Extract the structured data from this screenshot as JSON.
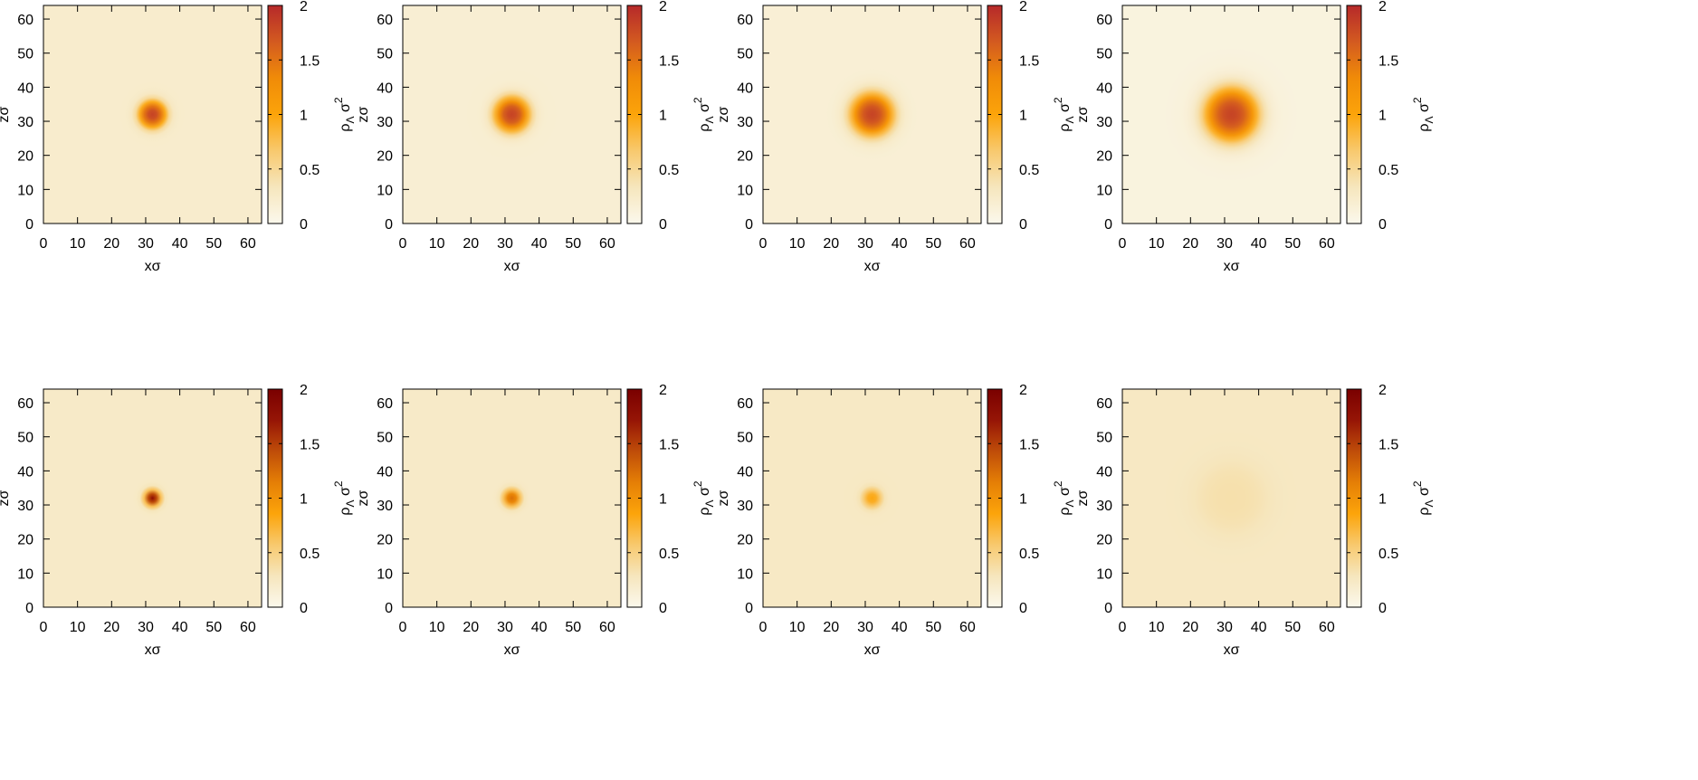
{
  "colors": {
    "top_colorbar": [
      "#fbf8ec",
      "#f6e6bd",
      "#f8c96e",
      "#fca40a",
      "#f08b08",
      "#d35a20",
      "#b6292a"
    ],
    "bottom_colorbar": [
      "#fbf8ec",
      "#f6e6bd",
      "#f8c96e",
      "#fca40a",
      "#e57f06",
      "#bf4d09",
      "#961506",
      "#7a0000"
    ]
  },
  "chart_data": [
    {
      "type": "heatmap",
      "row": "top",
      "xlabel": "xσ",
      "ylabel": "zσ",
      "xlim": [
        0,
        64
      ],
      "ylim": [
        0,
        64
      ],
      "xticks": [
        0,
        10,
        20,
        30,
        40,
        50,
        60
      ],
      "yticks": [
        0,
        10,
        20,
        30,
        40,
        50,
        60
      ],
      "colorbar": {
        "label": "ρΛ σ2",
        "range": [
          0,
          2
        ],
        "ticks": [
          0,
          0.5,
          1,
          1.5,
          2
        ]
      },
      "center": [
        32,
        32
      ],
      "core_radius": 3.5,
      "peak_density": 1.85,
      "background_density": 0.22
    },
    {
      "type": "heatmap",
      "row": "top",
      "xlabel": "xσ",
      "ylabel": "zσ",
      "xlim": [
        0,
        64
      ],
      "ylim": [
        0,
        64
      ],
      "xticks": [
        0,
        10,
        20,
        30,
        40,
        50,
        60
      ],
      "yticks": [
        0,
        10,
        20,
        30,
        40,
        50,
        60
      ],
      "colorbar": {
        "label": "ρΛ σ2",
        "range": [
          0,
          2
        ],
        "ticks": [
          0,
          0.5,
          1,
          1.5,
          2
        ]
      },
      "center": [
        32,
        32
      ],
      "core_radius": 4.5,
      "peak_density": 1.85,
      "background_density": 0.18
    },
    {
      "type": "heatmap",
      "row": "top",
      "xlabel": "xσ",
      "ylabel": "zσ",
      "xlim": [
        0,
        64
      ],
      "ylim": [
        0,
        64
      ],
      "xticks": [
        0,
        10,
        20,
        30,
        40,
        50,
        60
      ],
      "yticks": [
        0,
        10,
        20,
        30,
        40,
        50,
        60
      ],
      "colorbar": {
        "label": "ρΛ σ2",
        "range": [
          0,
          2
        ],
        "ticks": [
          0,
          0.5,
          1,
          1.5,
          2
        ]
      },
      "center": [
        32,
        32
      ],
      "core_radius": 5.5,
      "peak_density": 1.85,
      "background_density": 0.16
    },
    {
      "type": "heatmap",
      "row": "top",
      "xlabel": "xσ",
      "ylabel": "zσ",
      "xlim": [
        0,
        64
      ],
      "ylim": [
        0,
        64
      ],
      "xticks": [
        0,
        10,
        20,
        30,
        40,
        50,
        60
      ],
      "yticks": [
        0,
        10,
        20,
        30,
        40,
        50,
        60
      ],
      "colorbar": {
        "label": "ρΛ σ2",
        "range": [
          0,
          2
        ],
        "ticks": [
          0,
          0.5,
          1,
          1.5,
          2
        ]
      },
      "center": [
        32,
        32
      ],
      "core_radius": 7.0,
      "peak_density": 1.85,
      "background_density": 0.1
    },
    {
      "type": "heatmap",
      "row": "bottom",
      "xlabel": "xσ",
      "ylabel": "zσ",
      "xlim": [
        0,
        64
      ],
      "ylim": [
        0,
        64
      ],
      "xticks": [
        0,
        10,
        20,
        30,
        40,
        50,
        60
      ],
      "yticks": [
        0,
        10,
        20,
        30,
        40,
        50,
        60
      ],
      "colorbar": {
        "label": "ρΛ σ2",
        "range": [
          0,
          2
        ],
        "ticks": [
          0,
          0.5,
          1,
          1.5,
          2
        ]
      },
      "center": [
        32,
        32
      ],
      "core_radius": 1.8,
      "peak_density": 1.9,
      "background_density": 0.22
    },
    {
      "type": "heatmap",
      "row": "bottom",
      "xlabel": "xσ",
      "ylabel": "zσ",
      "xlim": [
        0,
        64
      ],
      "ylim": [
        0,
        64
      ],
      "xticks": [
        0,
        10,
        20,
        30,
        40,
        50,
        60
      ],
      "yticks": [
        0,
        10,
        20,
        30,
        40,
        50,
        60
      ],
      "colorbar": {
        "label": "ρΛ σ2",
        "range": [
          0,
          2
        ],
        "ticks": [
          0,
          0.5,
          1,
          1.5,
          2
        ]
      },
      "center": [
        32,
        32
      ],
      "core_radius": 2.2,
      "peak_density": 1.25,
      "background_density": 0.22
    },
    {
      "type": "heatmap",
      "row": "bottom",
      "xlabel": "xσ",
      "ylabel": "zσ",
      "xlim": [
        0,
        64
      ],
      "ylim": [
        0,
        64
      ],
      "xticks": [
        0,
        10,
        20,
        30,
        40,
        50,
        60
      ],
      "yticks": [
        0,
        10,
        20,
        30,
        40,
        50,
        60
      ],
      "colorbar": {
        "label": "ρΛ σ2",
        "range": [
          0,
          2
        ],
        "ticks": [
          0,
          0.5,
          1,
          1.5,
          2
        ]
      },
      "center": [
        32,
        32
      ],
      "core_radius": 2.5,
      "peak_density": 0.85,
      "background_density": 0.24
    },
    {
      "type": "heatmap",
      "row": "bottom",
      "xlabel": "xσ",
      "ylabel": "zσ",
      "xlim": [
        0,
        64
      ],
      "ylim": [
        0,
        64
      ],
      "xticks": [
        0,
        10,
        20,
        30,
        40,
        50,
        60
      ],
      "yticks": [
        0,
        10,
        20,
        30,
        40,
        50,
        60
      ],
      "colorbar": {
        "label": "ρΛ σ2",
        "range": [
          0,
          2
        ],
        "ticks": [
          0,
          0.5,
          1,
          1.5,
          2
        ]
      },
      "center": [
        32,
        32
      ],
      "core_radius": 10,
      "peak_density": 0.35,
      "background_density": 0.25
    }
  ]
}
